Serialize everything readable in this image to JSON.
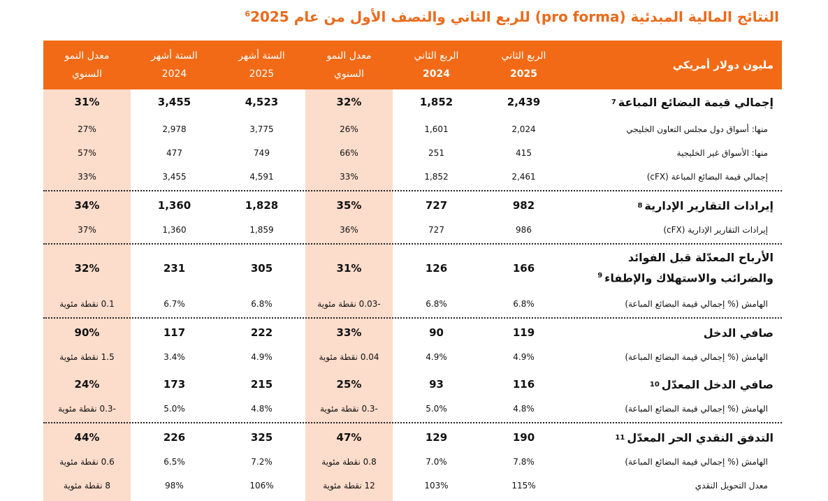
{
  "title": {
    "text": "النتائج المالية المبدئية (pro forma) للربع الثاني والنصف الأول من عام",
    "sup": "6",
    "year": "2025"
  },
  "header": {
    "label": "مليون دولار أمريكي",
    "cols": [
      {
        "top": "معدل النمو",
        "bottom": "السنوي"
      },
      {
        "top": "الستة أشهر",
        "bottom": "2024"
      },
      {
        "top": "الستة أشهر",
        "bottom": "2025"
      },
      {
        "top": "معدل النمو",
        "bottom": "السنوي"
      },
      {
        "top": "الربع الثاني",
        "bottom": "2024"
      },
      {
        "top": "الربع الثاني",
        "bottom": "2025"
      }
    ]
  },
  "rows": [
    {
      "label": "إجمالي قيمة البضائع المباعة",
      "note": "7",
      "values": [
        "31%",
        "3,455",
        "4,523",
        "32%",
        "1,852",
        "2,439"
      ]
    },
    {
      "label": "منها: أسواق دول مجلس التعاون الخليجي",
      "values": [
        "27%",
        "2,978",
        "3,775",
        "26%",
        "1,601",
        "2,024"
      ]
    },
    {
      "label": "منها: الأسواق غير الخليجية",
      "values": [
        "57%",
        "477",
        "749",
        "66%",
        "251",
        "415"
      ]
    },
    {
      "label": "إجمالي قيمة البضائع المباعة (cFX)",
      "values": [
        "33%",
        "3,455",
        "4,591",
        "33%",
        "1,852",
        "2,461"
      ]
    },
    {
      "label": "إيرادات التقارير الإدارية",
      "note": "8",
      "values": [
        "34%",
        "1,360",
        "1,828",
        "35%",
        "727",
        "982"
      ]
    },
    {
      "label": "إيرادات التقارير الإدارية (cFX)",
      "values": [
        "37%",
        "1,360",
        "1,859",
        "36%",
        "727",
        "986"
      ]
    },
    {
      "label": "الأرباح المعدّلة قبل الفوائد والضرائب والاستهلاك والإطفاء",
      "note": "9",
      "values": [
        "32%",
        "231",
        "305",
        "31%",
        "126",
        "166"
      ]
    },
    {
      "label": "الهامش (% إجمالي قيمة البضائع المباعة)",
      "values": [
        "0.1 نقطة مئوية",
        "6.7%",
        "6.8%",
        "-0.03 نقطة مئوية",
        "6.8%",
        "6.8%"
      ]
    },
    {
      "label": "صافي الدخل",
      "values": [
        "90%",
        "117",
        "222",
        "33%",
        "90",
        "119"
      ]
    },
    {
      "label": "الهامش (% إجمالي قيمة البضائع المباعة)",
      "values": [
        "1.5 نقطة مئوية",
        "3.4%",
        "4.9%",
        "0.04 نقطة مئوية",
        "4.9%",
        "4.9%"
      ]
    },
    {
      "label": "صافي الدخل المعدّل",
      "note": "10",
      "values": [
        "24%",
        "173",
        "215",
        "25%",
        "93",
        "116"
      ]
    },
    {
      "label": "الهامش (% إجمالي قيمة البضائع المباعة)",
      "values": [
        "-0.3 نقطة مئوية",
        "5.0%",
        "4.8%",
        "-0.3 نقطة مئوية",
        "5.0%",
        "4.8%"
      ]
    },
    {
      "label": "التدفق النقدي الحر المعدّل",
      "note": "11",
      "values": [
        "44%",
        "226",
        "325",
        "47%",
        "129",
        "190"
      ]
    },
    {
      "label": "الهامش (% إجمالي قيمة البضائع المباعة)",
      "values": [
        "0.6 نقطة مئوية",
        "6.5%",
        "7.2%",
        "0.8 نقطة مئوية",
        "7.0%",
        "7.8%"
      ]
    },
    {
      "label": "معدل التحويل النقدي",
      "values": [
        "8 نقطة مئوية",
        "98%",
        "106%",
        "12 نقطة مئوية",
        "103%",
        "115%"
      ]
    }
  ],
  "colors": {
    "accent": "#F26A16",
    "title": "#EA6A1C",
    "shade": "#FCDCCB"
  }
}
